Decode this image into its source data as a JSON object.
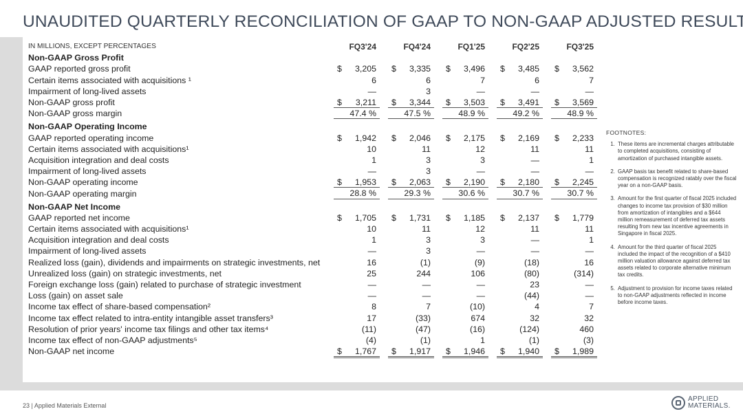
{
  "title": "UNAUDITED QUARTERLY RECONCILIATION OF GAAP TO NON-GAAP ADJUSTED RESULTS",
  "table": {
    "header_label": "IN MILLIONS, EXCEPT PERCENTAGES",
    "quarters": [
      "FQ3'24",
      "FQ4'24",
      "FQ1'25",
      "FQ2'25",
      "FQ3'25"
    ],
    "rows": [
      {
        "type": "section",
        "label": "Non-GAAP Gross Profit"
      },
      {
        "type": "data",
        "label": "GAAP reported gross profit",
        "dollar": true,
        "values": [
          "3,205",
          "3,335",
          "3,496",
          "3,485",
          "3,562"
        ]
      },
      {
        "type": "data",
        "label": "Certain items associated with acquisitions ¹",
        "values": [
          "6",
          "6",
          "7",
          "6",
          "7"
        ]
      },
      {
        "type": "data",
        "label": "Impairment of long-lived assets",
        "values": [
          "—",
          "3",
          "—",
          "—",
          "—"
        ]
      },
      {
        "type": "total",
        "label": "Non-GAAP gross profit",
        "dollar": true,
        "values": [
          "3,211",
          "3,344",
          "3,503",
          "3,491",
          "3,569"
        ]
      },
      {
        "type": "pct",
        "label": "Non-GAAP gross margin",
        "values": [
          "47.4 %",
          "47.5 %",
          "48.9 %",
          "49.2 %",
          "48.9 %"
        ]
      },
      {
        "type": "section",
        "label": "Non-GAAP Operating Income"
      },
      {
        "type": "data",
        "label": "GAAP reported operating income",
        "dollar": true,
        "values": [
          "1,942",
          "2,046",
          "2,175",
          "2,169",
          "2,233"
        ]
      },
      {
        "type": "data",
        "label": "Certain items associated with acquisitions¹",
        "values": [
          "10",
          "11",
          "12",
          "11",
          "11"
        ]
      },
      {
        "type": "data",
        "label": "Acquisition integration and deal costs",
        "values": [
          "1",
          "3",
          "3",
          "—",
          "1"
        ]
      },
      {
        "type": "data",
        "label": "Impairment of long-lived assets",
        "values": [
          "—",
          "3",
          "—",
          "—",
          "—"
        ]
      },
      {
        "type": "total",
        "label": "Non-GAAP operating income",
        "dollar": true,
        "values": [
          "1,953",
          "2,063",
          "2,190",
          "2,180",
          "2,245"
        ]
      },
      {
        "type": "pct",
        "label": "Non-GAAP operating margin",
        "values": [
          "28.8 %",
          "29.3 %",
          "30.6 %",
          "30.7 %",
          "30.7 %"
        ]
      },
      {
        "type": "section",
        "label": "Non-GAAP Net Income"
      },
      {
        "type": "data",
        "label": "GAAP reported net income",
        "dollar": true,
        "values": [
          "1,705",
          "1,731",
          "1,185",
          "2,137",
          "1,779"
        ]
      },
      {
        "type": "data",
        "label": "Certain items associated with acquisitions¹",
        "values": [
          "10",
          "11",
          "12",
          "11",
          "11"
        ]
      },
      {
        "type": "data",
        "label": "Acquisition integration and deal costs",
        "values": [
          "1",
          "3",
          "3",
          "—",
          "1"
        ]
      },
      {
        "type": "data",
        "label": "Impairment of long-lived assets",
        "values": [
          "—",
          "3",
          "—",
          "—",
          "—"
        ]
      },
      {
        "type": "data",
        "label": "Realized loss (gain), dividends and impairments on strategic investments, net",
        "values": [
          "16",
          "(1)",
          "(9)",
          "(18)",
          "16"
        ]
      },
      {
        "type": "data",
        "label": "Unrealized loss (gain) on strategic investments, net",
        "values": [
          "25",
          "244",
          "106",
          "(80)",
          "(314)"
        ]
      },
      {
        "type": "data",
        "label": "Foreign exchange loss (gain) related to purchase of strategic investment",
        "values": [
          "—",
          "—",
          "—",
          "23",
          "—"
        ]
      },
      {
        "type": "data",
        "label": "Loss (gain) on asset sale",
        "values": [
          "—",
          "—",
          "—",
          "(44)",
          "—"
        ]
      },
      {
        "type": "data",
        "label": "Income tax effect of share-based compensation²",
        "values": [
          "8",
          "7",
          "(10)",
          "4",
          "7"
        ]
      },
      {
        "type": "data",
        "label": "Income tax effect related to intra-entity intangible asset transfers³",
        "values": [
          "17",
          "(33)",
          "674",
          "32",
          "32"
        ]
      },
      {
        "type": "data",
        "label": "Resolution of prior years' income tax filings and other tax items⁴",
        "values": [
          "(11)",
          "(47)",
          "(16)",
          "(124)",
          "460"
        ]
      },
      {
        "type": "data",
        "label": "Income tax effect of non-GAAP adjustments⁵",
        "values": [
          "(4)",
          "(1)",
          "1",
          "(1)",
          "(3)"
        ]
      },
      {
        "type": "total2",
        "label": "Non-GAAP net income",
        "dollar": true,
        "values": [
          "1,767",
          "1,917",
          "1,946",
          "1,940",
          "1,989"
        ]
      }
    ]
  },
  "footnotes": {
    "heading": "FOOTNOTES:",
    "items": [
      "These items are incremental charges attributable to completed acquisitions, consisting of amortization of purchased intangible assets.",
      "GAAP basis tax benefit related to share-based compensation is recognized ratably over the fiscal year on a non-GAAP basis.",
      "Amount for the first quarter of fiscal 2025 included changes to income tax provision of $30 million from amortization of intangibles and a $644 million remeasurement of deferred tax assets resulting from new tax incentive agreements in Singapore in fiscal 2025.",
      "Amount for the third quarter of fiscal 2025 included the impact of the recognition of a $410 million valuation allowance against deferred tax assets related to corporate alternative minimum tax credits.",
      "Adjustment to provision for income taxes related to non-GAAP adjustments reflected in income before income taxes."
    ]
  },
  "page_footer": {
    "page_number": "23",
    "label": "| Applied Materials External"
  },
  "logo": {
    "line1": "APPLIED",
    "line2": "MATERIALS."
  },
  "colors": {
    "title": "#3f4a5a",
    "band": "#dcdcdc"
  }
}
